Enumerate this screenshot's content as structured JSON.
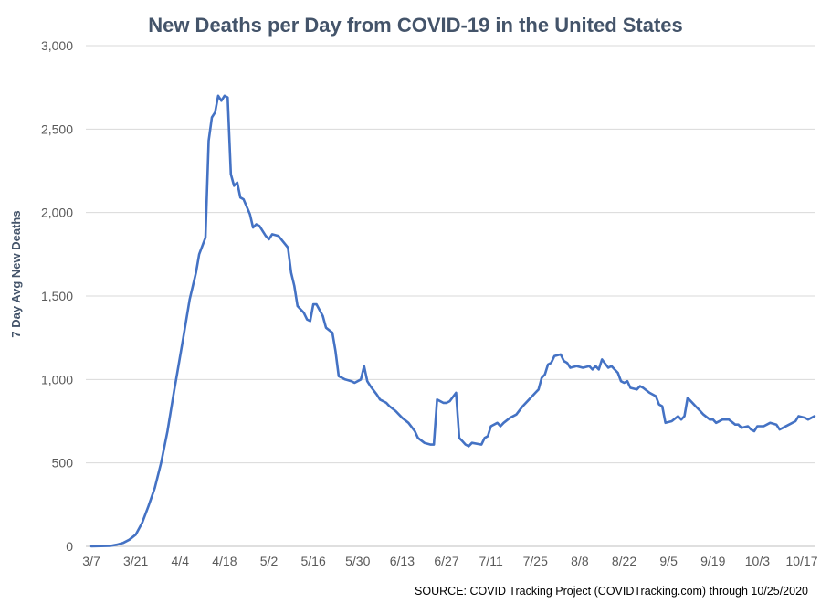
{
  "chart_data": {
    "type": "line",
    "title": "New Deaths per Day from COVID-19 in the United States",
    "ylabel": "7 Day Avg New Deaths",
    "xlabel": "",
    "source": "SOURCE: COVID Tracking Project (COVIDTracking.com) through 10/25/2020",
    "ylim": [
      0,
      3000
    ],
    "yticks": [
      "0",
      "500",
      "1,000",
      "1,500",
      "2,000",
      "2,500",
      "3,000"
    ],
    "ytick_values": [
      0,
      500,
      1000,
      1500,
      2000,
      2500,
      3000
    ],
    "xticks": [
      "3/7",
      "3/21",
      "4/4",
      "4/18",
      "5/2",
      "5/16",
      "5/30",
      "6/13",
      "6/27",
      "7/11",
      "7/25",
      "8/8",
      "8/22",
      "9/5",
      "9/19",
      "10/3",
      "10/17"
    ],
    "grid": true,
    "legend": "none",
    "series_color": "#4472c4",
    "series": [
      {
        "points": [
          [
            "3/7",
            0
          ],
          [
            "3/13",
            3
          ],
          [
            "3/15",
            10
          ],
          [
            "3/17",
            20
          ],
          [
            "3/19",
            40
          ],
          [
            "3/21",
            70
          ],
          [
            "3/23",
            140
          ],
          [
            "3/25",
            240
          ],
          [
            "3/27",
            350
          ],
          [
            "3/29",
            500
          ],
          [
            "3/31",
            690
          ],
          [
            "4/2",
            920
          ],
          [
            "4/3",
            1030
          ],
          [
            "4/5",
            1250
          ],
          [
            "4/7",
            1480
          ],
          [
            "4/9",
            1640
          ],
          [
            "4/10",
            1750
          ],
          [
            "4/12",
            1850
          ],
          [
            "4/13",
            2430
          ],
          [
            "4/14",
            2570
          ],
          [
            "4/15",
            2600
          ],
          [
            "4/16",
            2700
          ],
          [
            "4/17",
            2670
          ],
          [
            "4/18",
            2700
          ],
          [
            "4/19",
            2690
          ],
          [
            "4/20",
            2230
          ],
          [
            "4/21",
            2160
          ],
          [
            "4/22",
            2180
          ],
          [
            "4/23",
            2090
          ],
          [
            "4/24",
            2080
          ],
          [
            "4/26",
            1990
          ],
          [
            "4/27",
            1910
          ],
          [
            "4/28",
            1930
          ],
          [
            "4/29",
            1920
          ],
          [
            "5/1",
            1860
          ],
          [
            "5/2",
            1840
          ],
          [
            "5/3",
            1870
          ],
          [
            "5/5",
            1860
          ],
          [
            "5/8",
            1790
          ],
          [
            "5/9",
            1640
          ],
          [
            "5/10",
            1560
          ],
          [
            "5/11",
            1440
          ],
          [
            "5/13",
            1400
          ],
          [
            "5/14",
            1360
          ],
          [
            "5/15",
            1350
          ],
          [
            "5/16",
            1450
          ],
          [
            "5/17",
            1450
          ],
          [
            "5/19",
            1380
          ],
          [
            "5/20",
            1310
          ],
          [
            "5/22",
            1280
          ],
          [
            "5/23",
            1170
          ],
          [
            "5/24",
            1020
          ],
          [
            "5/26",
            1000
          ],
          [
            "5/28",
            990
          ],
          [
            "5/29",
            980
          ],
          [
            "5/31",
            1000
          ],
          [
            "6/1",
            1080
          ],
          [
            "6/2",
            990
          ],
          [
            "6/3",
            960
          ],
          [
            "6/5",
            910
          ],
          [
            "6/6",
            880
          ],
          [
            "6/8",
            860
          ],
          [
            "6/9",
            840
          ],
          [
            "6/11",
            810
          ],
          [
            "6/13",
            770
          ],
          [
            "6/15",
            740
          ],
          [
            "6/17",
            690
          ],
          [
            "6/18",
            650
          ],
          [
            "6/20",
            620
          ],
          [
            "6/22",
            610
          ],
          [
            "6/23",
            610
          ],
          [
            "6/24",
            880
          ],
          [
            "6/26",
            860
          ],
          [
            "6/27",
            860
          ],
          [
            "6/28",
            870
          ],
          [
            "6/30",
            920
          ],
          [
            "7/1",
            650
          ],
          [
            "7/2",
            630
          ],
          [
            "7/3",
            610
          ],
          [
            "7/4",
            600
          ],
          [
            "7/5",
            620
          ],
          [
            "7/8",
            610
          ],
          [
            "7/9",
            650
          ],
          [
            "7/10",
            660
          ],
          [
            "7/11",
            720
          ],
          [
            "7/13",
            740
          ],
          [
            "7/14",
            720
          ],
          [
            "7/15",
            740
          ],
          [
            "7/17",
            770
          ],
          [
            "7/19",
            790
          ],
          [
            "7/21",
            840
          ],
          [
            "7/23",
            880
          ],
          [
            "7/25",
            920
          ],
          [
            "7/26",
            940
          ],
          [
            "7/27",
            1010
          ],
          [
            "7/28",
            1030
          ],
          [
            "7/29",
            1090
          ],
          [
            "7/30",
            1100
          ],
          [
            "7/31",
            1140
          ],
          [
            "8/2",
            1150
          ],
          [
            "8/3",
            1110
          ],
          [
            "8/4",
            1100
          ],
          [
            "8/5",
            1070
          ],
          [
            "8/7",
            1080
          ],
          [
            "8/9",
            1070
          ],
          [
            "8/11",
            1080
          ],
          [
            "8/12",
            1060
          ],
          [
            "8/13",
            1080
          ],
          [
            "8/14",
            1060
          ],
          [
            "8/15",
            1120
          ],
          [
            "8/17",
            1070
          ],
          [
            "8/18",
            1080
          ],
          [
            "8/19",
            1060
          ],
          [
            "8/20",
            1040
          ],
          [
            "8/21",
            990
          ],
          [
            "8/22",
            980
          ],
          [
            "8/23",
            990
          ],
          [
            "8/24",
            950
          ],
          [
            "8/26",
            940
          ],
          [
            "8/27",
            960
          ],
          [
            "8/28",
            950
          ],
          [
            "8/30",
            920
          ],
          [
            "9/1",
            900
          ],
          [
            "9/2",
            850
          ],
          [
            "9/3",
            840
          ],
          [
            "9/4",
            740
          ],
          [
            "9/6",
            750
          ],
          [
            "9/8",
            780
          ],
          [
            "9/9",
            760
          ],
          [
            "9/10",
            780
          ],
          [
            "9/11",
            890
          ],
          [
            "9/13",
            850
          ],
          [
            "9/14",
            830
          ],
          [
            "9/15",
            810
          ],
          [
            "9/16",
            790
          ],
          [
            "9/18",
            760
          ],
          [
            "9/19",
            760
          ],
          [
            "9/20",
            740
          ],
          [
            "9/22",
            760
          ],
          [
            "9/24",
            760
          ],
          [
            "9/26",
            730
          ],
          [
            "9/27",
            730
          ],
          [
            "9/28",
            710
          ],
          [
            "9/30",
            720
          ],
          [
            "10/1",
            700
          ],
          [
            "10/2",
            690
          ],
          [
            "10/3",
            720
          ],
          [
            "10/5",
            720
          ],
          [
            "10/7",
            740
          ],
          [
            "10/9",
            730
          ],
          [
            "10/10",
            700
          ],
          [
            "10/11",
            710
          ],
          [
            "10/13",
            730
          ],
          [
            "10/15",
            750
          ],
          [
            "10/16",
            780
          ],
          [
            "10/18",
            770
          ],
          [
            "10/19",
            760
          ],
          [
            "10/21",
            780
          ]
        ]
      }
    ]
  }
}
